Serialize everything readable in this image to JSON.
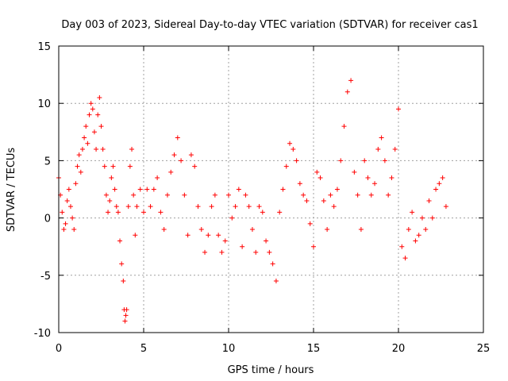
{
  "chart_data": {
    "type": "scatter",
    "title": "Day 003 of 2023, Sidereal Day-to-day VTEC variation (SDTVAR) for receiver cas1",
    "xlabel": "GPS time / hours",
    "ylabel": "SDTVAR / TECUs",
    "xlim": [
      0,
      25
    ],
    "ylim": [
      -10,
      15
    ],
    "xticks": [
      0,
      5,
      10,
      15,
      20,
      25
    ],
    "yticks": [
      -10,
      -5,
      0,
      5,
      10,
      15
    ],
    "xtick_labels": [
      "0",
      "5",
      "10",
      "15",
      "20",
      "25"
    ],
    "ytick_labels": [
      "-10",
      "-5",
      "0",
      "5",
      "10",
      "15"
    ],
    "grid": true,
    "marker": "plus",
    "color": "#ff0000",
    "series": [
      {
        "name": "SDTVAR",
        "x": [
          0.0,
          0.1,
          0.2,
          0.3,
          0.4,
          0.5,
          0.6,
          0.7,
          0.8,
          0.9,
          1.0,
          1.1,
          1.2,
          1.3,
          1.4,
          1.5,
          1.6,
          1.7,
          1.8,
          1.9,
          2.0,
          2.1,
          2.2,
          2.3,
          2.4,
          2.5,
          2.6,
          2.7,
          2.8,
          2.9,
          3.0,
          3.1,
          3.2,
          3.3,
          3.4,
          3.5,
          3.6,
          3.7,
          3.8,
          3.85,
          3.9,
          3.95,
          4.0,
          4.1,
          4.2,
          4.3,
          4.4,
          4.5,
          4.6,
          4.8,
          5.0,
          5.2,
          5.4,
          5.6,
          5.8,
          6.0,
          6.2,
          6.4,
          6.6,
          6.8,
          7.0,
          7.2,
          7.4,
          7.6,
          7.8,
          8.0,
          8.2,
          8.4,
          8.6,
          8.8,
          9.0,
          9.2,
          9.4,
          9.6,
          9.8,
          10.0,
          10.2,
          10.4,
          10.6,
          10.8,
          11.0,
          11.2,
          11.4,
          11.6,
          11.8,
          12.0,
          12.2,
          12.4,
          12.6,
          12.8,
          13.0,
          13.2,
          13.4,
          13.6,
          13.8,
          14.0,
          14.2,
          14.4,
          14.6,
          14.8,
          15.0,
          15.2,
          15.4,
          15.6,
          15.8,
          16.0,
          16.2,
          16.4,
          16.6,
          16.8,
          17.0,
          17.2,
          17.4,
          17.6,
          17.8,
          18.0,
          18.2,
          18.4,
          18.6,
          18.8,
          19.0,
          19.2,
          19.4,
          19.6,
          19.8,
          20.0,
          20.2,
          20.4,
          20.6,
          20.8,
          21.0,
          21.2,
          21.4,
          21.6,
          21.8,
          22.0,
          22.2,
          22.4,
          22.6,
          22.8
        ],
        "y": [
          3.5,
          2.0,
          0.5,
          -1.0,
          -0.5,
          1.5,
          2.5,
          1.0,
          0.0,
          -1.0,
          3.0,
          4.5,
          5.5,
          4.0,
          6.0,
          7.0,
          8.0,
          6.5,
          9.0,
          10.0,
          9.5,
          7.5,
          6.0,
          9.0,
          10.5,
          8.0,
          6.0,
          4.5,
          2.0,
          0.5,
          1.5,
          3.5,
          4.5,
          2.5,
          1.0,
          0.5,
          -2.0,
          -4.0,
          -5.5,
          -8.0,
          -9.0,
          -8.5,
          -8.0,
          1.0,
          4.5,
          6.0,
          2.0,
          -1.5,
          1.0,
          2.5,
          0.5,
          2.5,
          1.0,
          2.5,
          3.5,
          0.5,
          -1.0,
          2.0,
          4.0,
          5.5,
          7.0,
          5.0,
          2.0,
          -1.5,
          5.5,
          4.5,
          1.0,
          -1.0,
          -3.0,
          -1.5,
          1.0,
          2.0,
          -1.5,
          -3.0,
          -2.0,
          2.0,
          0.0,
          1.0,
          2.5,
          -2.5,
          2.0,
          1.0,
          -1.0,
          -3.0,
          1.0,
          0.5,
          -2.0,
          -3.0,
          -4.0,
          -5.5,
          0.5,
          2.5,
          4.5,
          6.5,
          6.0,
          5.0,
          3.0,
          2.0,
          1.5,
          -0.5,
          -2.5,
          4.0,
          3.5,
          1.5,
          -1.0,
          2.0,
          1.0,
          2.5,
          5.0,
          8.0,
          11.0,
          12.0,
          4.0,
          2.0,
          -1.0,
          5.0,
          3.5,
          2.0,
          3.0,
          6.0,
          7.0,
          5.0,
          2.0,
          3.5,
          6.0,
          9.5,
          -2.5,
          -3.5,
          -1.0,
          0.5,
          -2.0,
          -1.5,
          0.0,
          -1.0,
          1.5,
          0.0,
          2.5,
          3.0,
          3.5,
          1.0
        ]
      }
    ]
  }
}
